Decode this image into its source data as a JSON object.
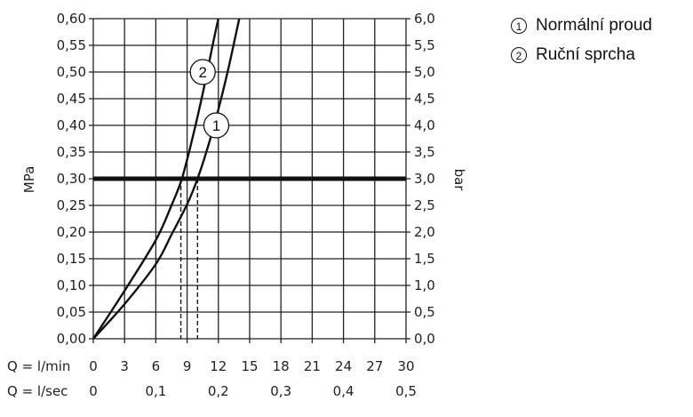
{
  "chart_data": {
    "type": "line",
    "title": "",
    "ylabel_left": "MPa",
    "ylabel_right": "bar",
    "xlabel_rows": [
      "Q = l/min",
      "Q = l/sec"
    ],
    "xlim": [
      0,
      30
    ],
    "ylim": [
      0,
      0.6
    ],
    "grid": true,
    "x_ticks_lmin": [
      "0",
      "3",
      "6",
      "9",
      "12",
      "15",
      "18",
      "21",
      "24",
      "27",
      "30"
    ],
    "x_ticks_lsec": [
      "0",
      "0,1",
      "0,2",
      "0,3",
      "0,4",
      "0,5"
    ],
    "x_ticks_lsec_values": [
      0,
      0.1,
      0.2,
      0.3,
      0.4,
      0.5
    ],
    "y_ticks_mpa": [
      "0,00",
      "0,05",
      "0,10",
      "0,15",
      "0,20",
      "0,25",
      "0,30",
      "0,35",
      "0,40",
      "0,45",
      "0,50",
      "0,55",
      "0,60"
    ],
    "y_ticks_bar": [
      "0,0",
      "0,5",
      "1,0",
      "1,5",
      "2,0",
      "2,5",
      "3,0",
      "3,5",
      "4,0",
      "4,5",
      "5,0",
      "5,5",
      "6,0"
    ],
    "reference_line": {
      "y": 0.3,
      "label": ""
    },
    "series": [
      {
        "marker": "1",
        "name": "Normální proud",
        "x": [
          0,
          3,
          6,
          7.5,
          9,
          10,
          11,
          12,
          13,
          14
        ],
        "y": [
          0,
          0.065,
          0.14,
          0.195,
          0.252,
          0.3,
          0.36,
          0.43,
          0.51,
          0.6
        ],
        "marker_at": {
          "x": 11.8,
          "y": 0.4
        },
        "dashed_drop_x": 10
      },
      {
        "marker": "2",
        "name": "Ruční sprcha",
        "x": [
          0,
          3,
          6,
          7.5,
          8.5,
          9.5,
          10.5,
          11.5,
          12
        ],
        "y": [
          0,
          0.09,
          0.185,
          0.25,
          0.3,
          0.375,
          0.46,
          0.555,
          0.6
        ],
        "marker_at": {
          "x": 10.5,
          "y": 0.5
        },
        "dashed_drop_x": 8.4
      }
    ]
  },
  "legend": {
    "items": [
      {
        "num": "1",
        "label": "Normální proud"
      },
      {
        "num": "2",
        "label": "Ruční sprcha"
      }
    ]
  }
}
